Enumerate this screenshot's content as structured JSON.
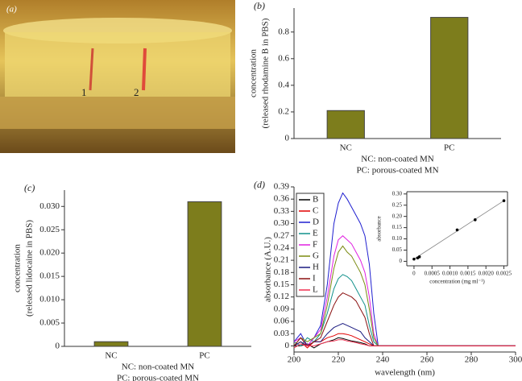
{
  "photo": {
    "panel_label": "(a)",
    "labels": [
      "1",
      "2"
    ]
  },
  "chart_data": [
    {
      "type": "bar",
      "panel_label": "(b)",
      "ylabel": [
        "concentration",
        "(released rhodamine B in PBS)"
      ],
      "categories": [
        "NC",
        "PC"
      ],
      "values": [
        0.21,
        0.91
      ],
      "color": "#7d7d1c",
      "ylim": [
        0,
        0.98
      ],
      "yticks": [
        0,
        0.2,
        0.4,
        0.6,
        0.8
      ],
      "notes": [
        "NC: non-coated MN",
        "PC: porous-coated MN"
      ]
    },
    {
      "type": "bar",
      "panel_label": "(c)",
      "ylabel": [
        "concentration",
        "(released lidocaine in PBS)"
      ],
      "categories": [
        "NC",
        "PC"
      ],
      "values": [
        0.001,
        0.031
      ],
      "color": "#7d7d1c",
      "ylim": [
        0,
        0.0335
      ],
      "yticks": [
        0,
        0.005,
        {
          "value": 0.01,
          "label": "0.010"
        },
        0.015,
        {
          "value": 0.02,
          "label": "0.020"
        },
        0.025,
        {
          "value": 0.03,
          "label": "0.030"
        }
      ],
      "notes": [
        "NC: non-coated MN",
        "PC: porous-coated MN"
      ]
    },
    {
      "type": "line",
      "panel_label": "(d)",
      "xlabel": "wavelength (nm)",
      "ylabel": [
        "absorbance (A.U.)"
      ],
      "x": [
        200,
        203,
        206,
        209,
        212,
        215,
        218,
        220,
        222,
        224,
        226,
        228,
        230,
        232,
        234,
        236,
        238,
        240,
        250,
        300
      ],
      "xlim": [
        200,
        300
      ],
      "xticks": [
        200,
        220,
        240,
        260,
        280,
        300
      ],
      "ylim": [
        -0.015,
        0.39
      ],
      "yticks": [
        0,
        0.03,
        0.06,
        0.09,
        0.12,
        0.15,
        0.18,
        0.21,
        0.24,
        0.27,
        {
          "value": 0.3,
          "label": "0.30"
        },
        0.33,
        0.36,
        0.39
      ],
      "series": [
        {
          "name": "B",
          "color": "#000000",
          "values": [
            0.0,
            0.0,
            0.005,
            -0.005,
            0.005,
            0.01,
            0.015,
            0.02,
            0.018,
            0.015,
            0.012,
            0.01,
            0.008,
            0.005,
            0,
            0,
            0,
            0,
            0,
            0
          ]
        },
        {
          "name": "C",
          "color": "#e00000",
          "values": [
            0.0,
            0.01,
            -0.005,
            0.01,
            0.01,
            0.02,
            0.025,
            0.03,
            0.03,
            0.028,
            0.025,
            0.02,
            0.015,
            0.01,
            0.005,
            0,
            0,
            0,
            0,
            0
          ]
        },
        {
          "name": "D",
          "color": "#1f1fd0",
          "values": [
            0.01,
            0.03,
            0.0,
            0.02,
            0.05,
            0.15,
            0.3,
            0.35,
            0.375,
            0.36,
            0.34,
            0.32,
            0.3,
            0.27,
            0.2,
            0.08,
            0.0,
            0,
            0,
            0
          ]
        },
        {
          "name": "E",
          "color": "#10908a",
          "values": [
            0.01,
            0.0,
            0.02,
            0.01,
            0.03,
            0.08,
            0.14,
            0.165,
            0.175,
            0.17,
            0.16,
            0.14,
            0.12,
            0.1,
            0.05,
            0.01,
            0,
            0,
            0,
            0
          ]
        },
        {
          "name": "F",
          "color": "#e020e0",
          "values": [
            0.01,
            0.02,
            0.0,
            0.02,
            0.04,
            0.12,
            0.22,
            0.26,
            0.27,
            0.26,
            0.25,
            0.23,
            0.21,
            0.18,
            0.12,
            0.03,
            0,
            0,
            0,
            0
          ]
        },
        {
          "name": "G",
          "color": "#7a8a10",
          "values": [
            0.0,
            0.02,
            0.01,
            0.02,
            0.03,
            0.1,
            0.19,
            0.23,
            0.245,
            0.23,
            0.22,
            0.2,
            0.18,
            0.15,
            0.09,
            0.02,
            0,
            0,
            0,
            0
          ]
        },
        {
          "name": "H",
          "color": "#1a1a80",
          "values": [
            0.0,
            0.01,
            0.0,
            0.01,
            0.01,
            0.03,
            0.045,
            0.05,
            0.055,
            0.05,
            0.045,
            0.04,
            0.035,
            0.02,
            0.01,
            0,
            0,
            0,
            0,
            0
          ]
        },
        {
          "name": "I",
          "color": "#8a1010",
          "values": [
            0.0,
            0.02,
            0.0,
            0.01,
            0.02,
            0.06,
            0.1,
            0.12,
            0.13,
            0.125,
            0.12,
            0.11,
            0.09,
            0.07,
            0.03,
            0.0,
            0,
            0,
            0,
            0
          ]
        },
        {
          "name": "L",
          "color": "#f03050",
          "values": [
            -0.005,
            0.005,
            0.0,
            0.0,
            0.005,
            0.01,
            0.012,
            0.015,
            0.015,
            0.012,
            0.01,
            0.008,
            0.005,
            0.003,
            0,
            0,
            0,
            0,
            0,
            0
          ]
        }
      ]
    },
    {
      "type": "scatter",
      "xlabel": "concentration (mg ml⁻¹)",
      "ylabel": [
        "absorbance"
      ],
      "x": [
        0,
        0.0001,
        0.00015,
        0.0012,
        0.0017,
        0.0025
      ],
      "values": [
        0.01,
        0.015,
        0.02,
        0.14,
        0.185,
        0.27
      ],
      "color": "#000000",
      "xlim": [
        -0.0002,
        0.0026
      ],
      "xticks": [
        0,
        0.0005,
        {
          "value": 0.001,
          "label": "0.0010"
        },
        0.0015,
        {
          "value": 0.002,
          "label": "0.0020"
        },
        0.0025
      ],
      "ylim": [
        -0.02,
        0.31
      ],
      "yticks": [
        0,
        0.05,
        {
          "value": 0.1,
          "label": "0.10"
        },
        0.15,
        {
          "value": 0.2,
          "label": "0.20"
        },
        0.25,
        {
          "value": 0.3,
          "label": "0.30"
        }
      ]
    }
  ]
}
